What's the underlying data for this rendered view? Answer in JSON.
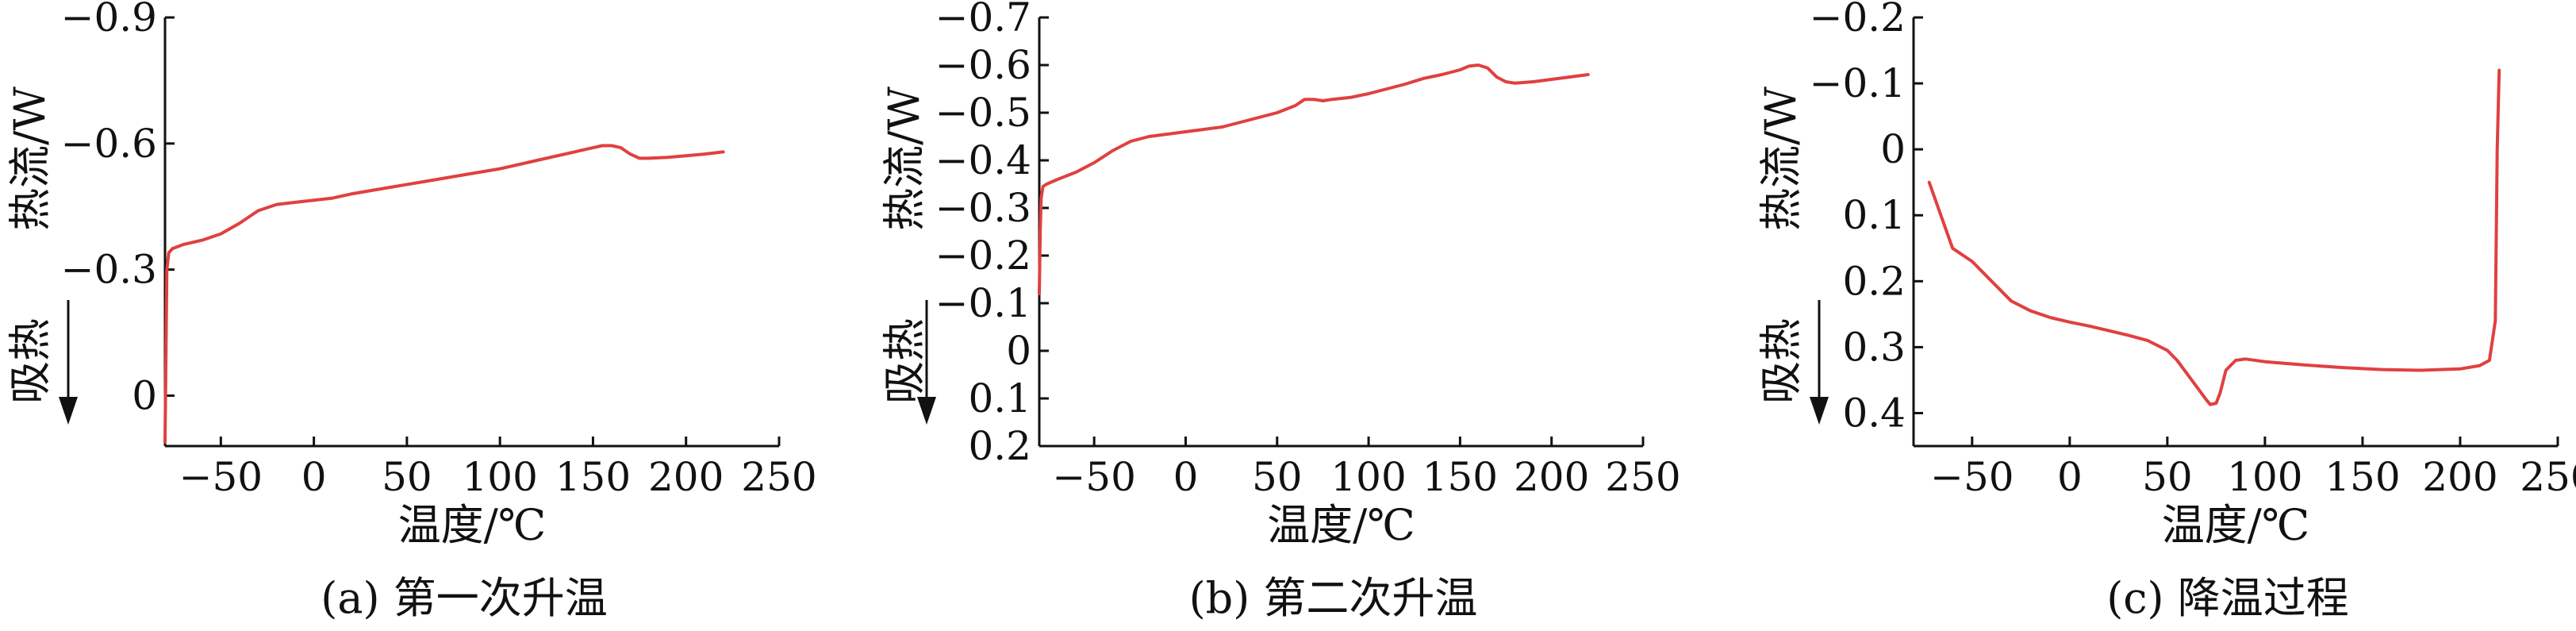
{
  "chart_data": [
    {
      "type": "line",
      "caption": "(a) 第一次升温",
      "xlabel": "温度/℃",
      "ylabel": "热流/W",
      "annotation": "吸热",
      "xlim": [
        -80,
        250
      ],
      "ylim": [
        0.12,
        -0.9
      ],
      "y_axis_inverted": true,
      "xticks": [
        -50,
        0,
        50,
        100,
        150,
        200,
        250
      ],
      "xtick_labels": [
        "−50",
        "0",
        "50",
        "100",
        "150",
        "200",
        "250"
      ],
      "yticks": [
        -0.9,
        -0.6,
        -0.3,
        0
      ],
      "ytick_labels": [
        "−0.9",
        "−0.6",
        "−0.3",
        "0"
      ],
      "line_color": "#e04040",
      "series": [
        {
          "x": [
            -80,
            -79.5,
            -79,
            -78,
            -76,
            -70,
            -60,
            -50,
            -40,
            -30,
            -20,
            -10,
            0,
            10,
            20,
            40,
            60,
            80,
            100,
            120,
            140,
            150,
            155,
            160,
            165,
            170,
            175,
            180,
            190,
            200,
            210,
            220
          ],
          "y": [
            0.11,
            -0.1,
            -0.3,
            -0.34,
            -0.35,
            -0.36,
            -0.37,
            -0.385,
            -0.41,
            -0.44,
            -0.455,
            -0.46,
            -0.465,
            -0.47,
            -0.48,
            -0.495,
            -0.51,
            -0.525,
            -0.54,
            -0.56,
            -0.58,
            -0.59,
            -0.595,
            -0.595,
            -0.59,
            -0.575,
            -0.565,
            -0.565,
            -0.567,
            -0.571,
            -0.575,
            -0.58
          ]
        }
      ]
    },
    {
      "type": "line",
      "caption": "(b) 第二次升温",
      "xlabel": "温度/℃",
      "ylabel": "热流/W",
      "annotation": "吸热",
      "xlim": [
        -80,
        250
      ],
      "ylim": [
        0.2,
        -0.7
      ],
      "y_axis_inverted": true,
      "xticks": [
        -50,
        0,
        50,
        100,
        150,
        200,
        250
      ],
      "xtick_labels": [
        "−50",
        "0",
        "50",
        "100",
        "150",
        "200",
        "250"
      ],
      "yticks": [
        -0.7,
        -0.6,
        -0.5,
        -0.4,
        -0.3,
        -0.2,
        -0.1,
        0,
        0.1,
        0.2
      ],
      "ytick_labels": [
        "−0.7",
        "−0.6",
        "−0.5",
        "−0.4",
        "−0.3",
        "−0.2",
        "−0.1",
        "0",
        "0.1",
        "0.2"
      ],
      "line_color": "#e04040",
      "series": [
        {
          "x": [
            -80,
            -79.5,
            -79,
            -78,
            -76,
            -70,
            -60,
            -50,
            -40,
            -30,
            -20,
            -10,
            0,
            10,
            20,
            30,
            40,
            50,
            60,
            65,
            70,
            75,
            80,
            90,
            100,
            110,
            120,
            130,
            140,
            150,
            155,
            160,
            165,
            170,
            175,
            180,
            190,
            200,
            210,
            220
          ],
          "y": [
            -0.12,
            -0.25,
            -0.32,
            -0.345,
            -0.35,
            -0.36,
            -0.375,
            -0.395,
            -0.42,
            -0.44,
            -0.45,
            -0.455,
            -0.46,
            -0.465,
            -0.47,
            -0.48,
            -0.49,
            -0.5,
            -0.515,
            -0.528,
            -0.528,
            -0.525,
            -0.528,
            -0.532,
            -0.54,
            -0.55,
            -0.56,
            -0.572,
            -0.58,
            -0.59,
            -0.598,
            -0.6,
            -0.594,
            -0.575,
            -0.565,
            -0.562,
            -0.565,
            -0.57,
            -0.575,
            -0.58
          ]
        }
      ]
    },
    {
      "type": "line",
      "caption": "(c) 降温过程",
      "xlabel": "温度/℃",
      "ylabel": "热流/W",
      "annotation": "吸热",
      "xlim": [
        -80,
        250
      ],
      "ylim": [
        0.45,
        -0.2
      ],
      "y_axis_inverted": true,
      "xticks": [
        -50,
        0,
        50,
        100,
        150,
        200,
        250
      ],
      "xtick_labels": [
        "−50",
        "0",
        "50",
        "100",
        "150",
        "200",
        "250"
      ],
      "yticks": [
        -0.2,
        -0.1,
        0,
        0.1,
        0.2,
        0.3,
        0.4
      ],
      "ytick_labels": [
        "−0.2",
        "−0.1",
        "0",
        "0.1",
        "0.2",
        "0.3",
        "0.4"
      ],
      "line_color": "#e04040",
      "series": [
        {
          "x": [
            -72,
            -66,
            -60,
            -50,
            -40,
            -30,
            -20,
            -10,
            0,
            10,
            20,
            30,
            40,
            50,
            55,
            60,
            65,
            70,
            72,
            75,
            77,
            80,
            85,
            90,
            100,
            120,
            140,
            160,
            180,
            200,
            210,
            215,
            218,
            219,
            220
          ],
          "y": [
            0.05,
            0.1,
            0.15,
            0.17,
            0.2,
            0.23,
            0.245,
            0.255,
            0.262,
            0.268,
            0.275,
            0.282,
            0.29,
            0.305,
            0.32,
            0.34,
            0.36,
            0.38,
            0.387,
            0.385,
            0.37,
            0.335,
            0.32,
            0.318,
            0.322,
            0.327,
            0.331,
            0.334,
            0.335,
            0.333,
            0.328,
            0.32,
            0.26,
            0.0,
            -0.12
          ]
        }
      ]
    }
  ]
}
